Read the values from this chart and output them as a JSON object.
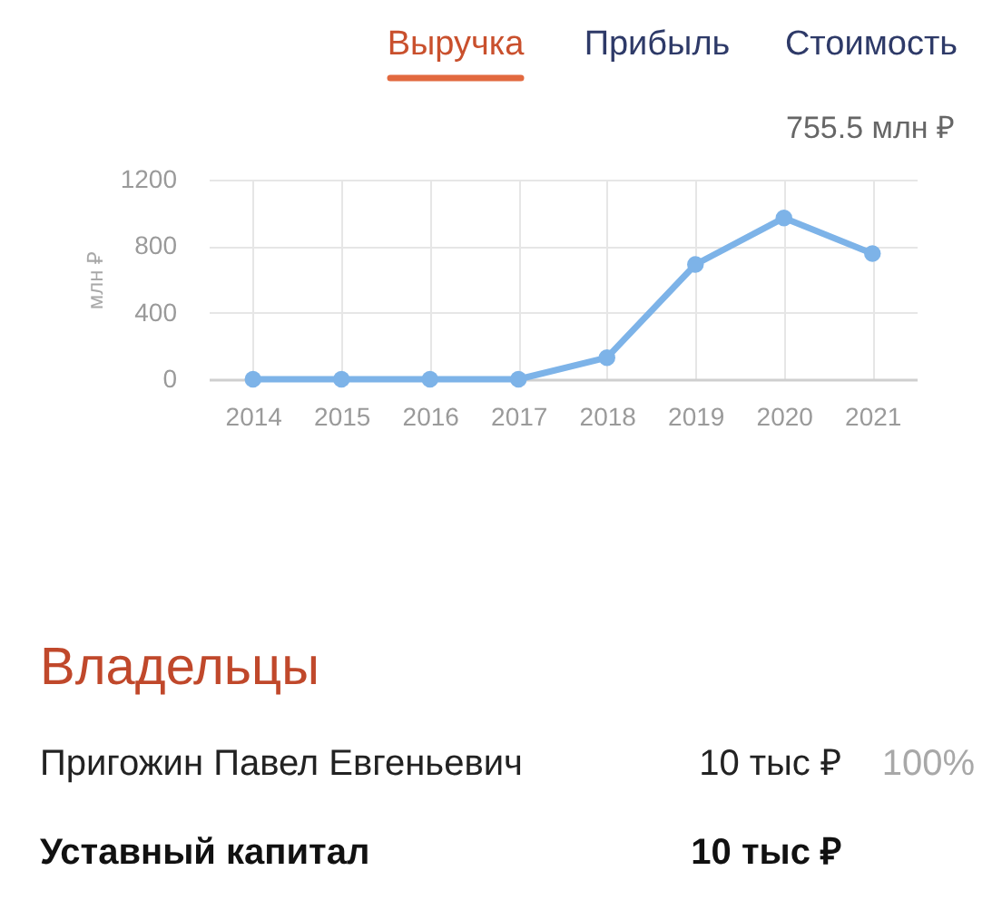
{
  "chart_data": [
    {
      "type": "line",
      "title": "Выручка",
      "annotations": [
        "Прибыль",
        "Стоимость",
        "755.5 млн ₽"
      ],
      "ylabel": "млн ₽",
      "categories": [
        "2014",
        "2015",
        "2016",
        "2017",
        "2018",
        "2019",
        "2020",
        "2021"
      ],
      "series": [
        {
          "color": "#7db3e8",
          "values": [
            0,
            0,
            0,
            0,
            130,
            690,
            970,
            755.5
          ]
        }
      ],
      "ylim": [
        0,
        1200
      ],
      "yticks": [
        0,
        400,
        800,
        1200
      ],
      "grid": true,
      "marker": "circle",
      "line_style": "solid"
    },
    {
      "type": "other",
      "title": "Владельцы",
      "annotations": [
        "Пригожин Павел Евгеньевич",
        "10 тыс ₽",
        "100%",
        "Уставный капитал",
        "10 тыс ₽"
      ]
    }
  ]
}
